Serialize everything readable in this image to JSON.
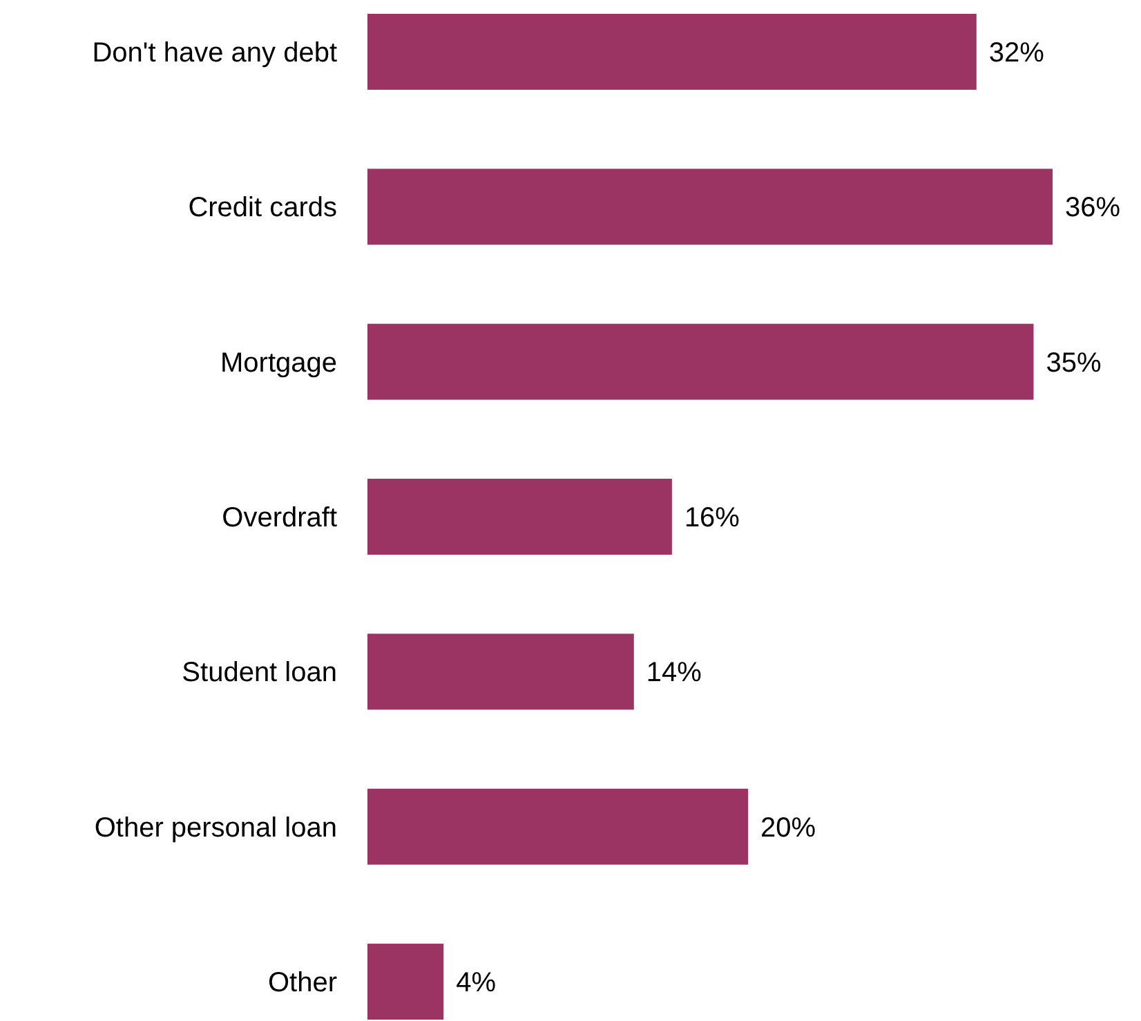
{
  "chart_data": {
    "type": "bar",
    "orientation": "horizontal",
    "categories": [
      "Don't have any debt",
      "Credit cards",
      "Mortgage",
      "Overdraft",
      "Student loan",
      "Other personal loan",
      "Other"
    ],
    "values": [
      32,
      36,
      35,
      16,
      14,
      20,
      4
    ],
    "value_labels": [
      "32%",
      "36%",
      "35%",
      "16%",
      "14%",
      "20%",
      "4%"
    ],
    "color": "#9b3363"
  }
}
